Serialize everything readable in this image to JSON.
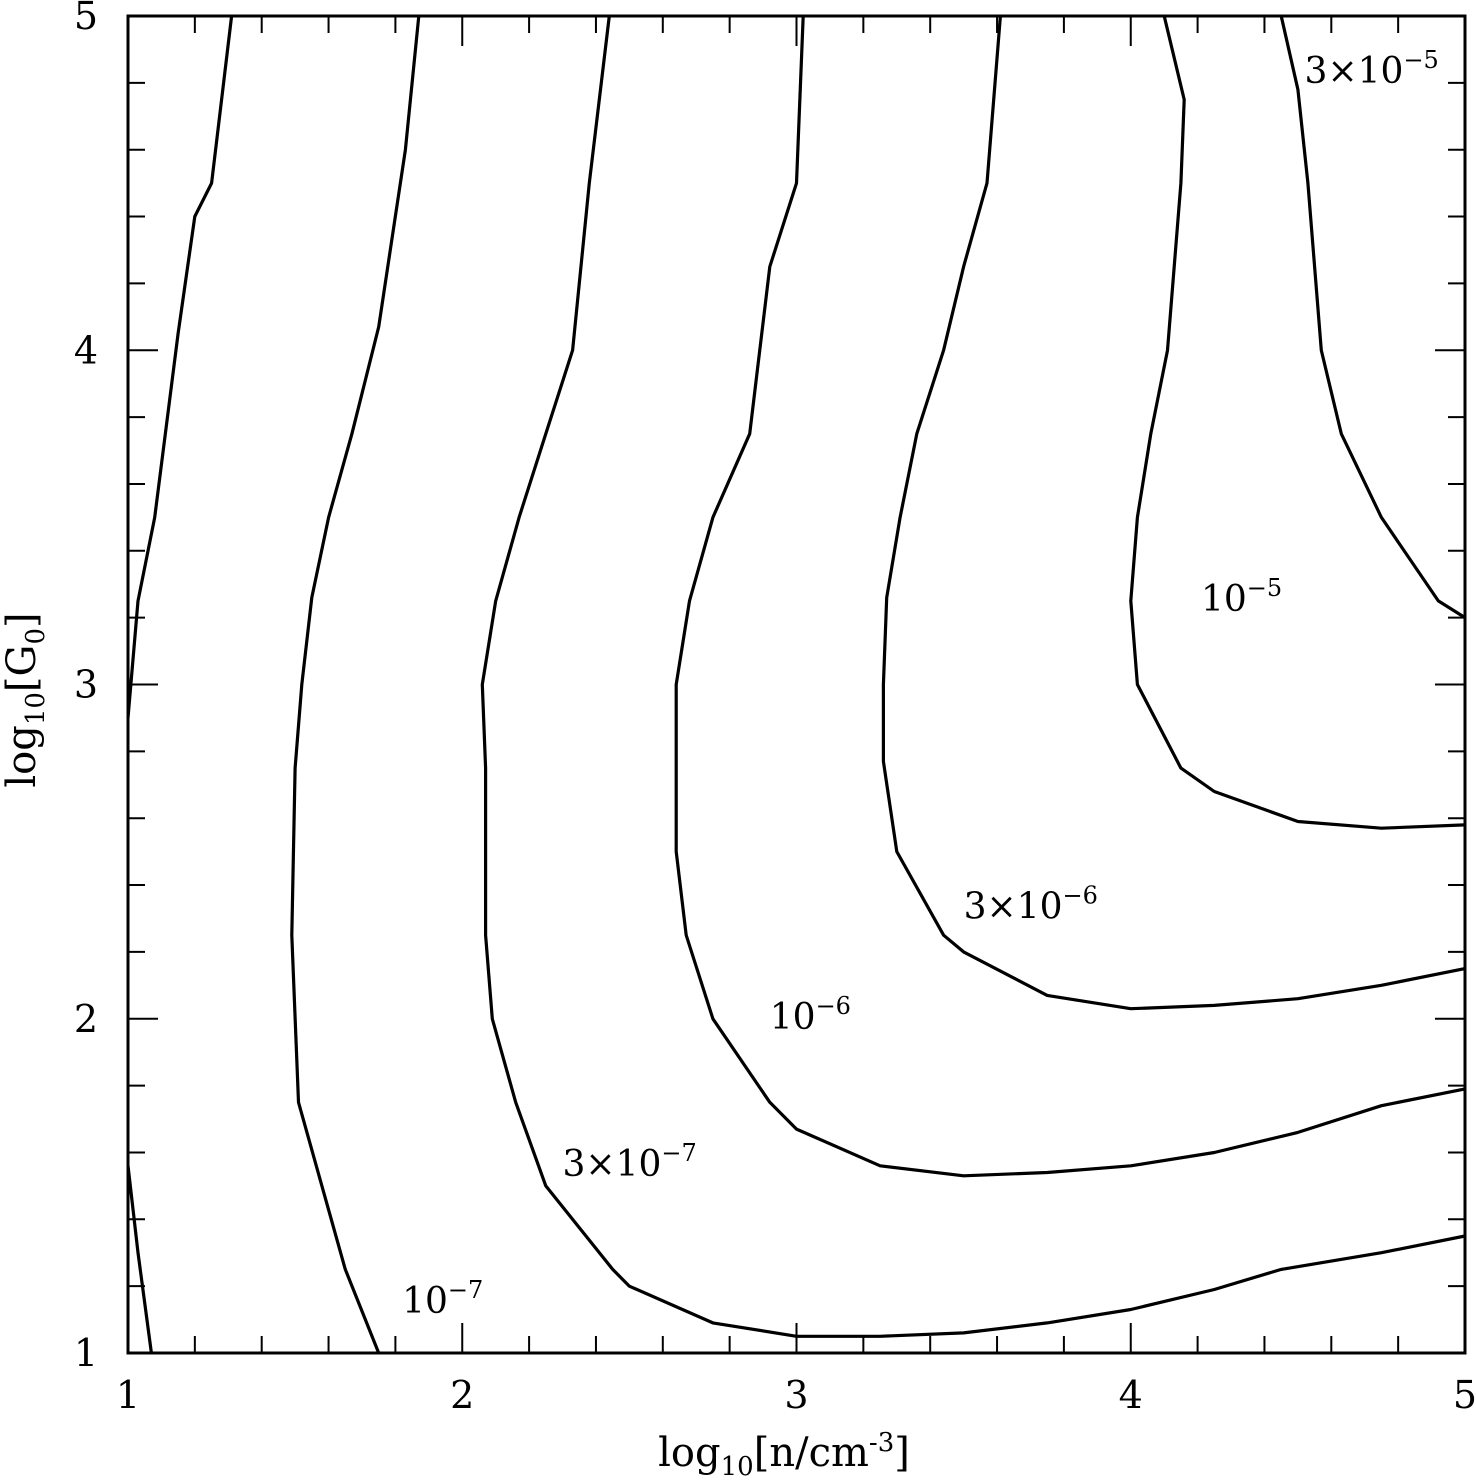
{
  "chart_data": {
    "type": "contour",
    "xlabel": {
      "base": "log",
      "sub": "10",
      "main": "[n/cm",
      "sup": "-3",
      "end": "]"
    },
    "ylabel": {
      "base": "log",
      "sub": "10",
      "main": "[G",
      "sub2": "0",
      "end": "]"
    },
    "xlim": [
      1,
      5
    ],
    "ylim": [
      1,
      5
    ],
    "x_ticks": [
      "1",
      "2",
      "3",
      "4",
      "5"
    ],
    "y_ticks": [
      "1",
      "2",
      "3",
      "4",
      "5"
    ],
    "grid": false,
    "contours": [
      {
        "label": {
          "pre": "",
          "main": "10",
          "sup": "−7"
        },
        "label_at": [
          1.82,
          1.12
        ],
        "lines": [
          [
            [
              1.0,
              1.56
            ],
            [
              1.03,
              1.3
            ],
            [
              1.07,
              1.0
            ]
          ],
          [
            [
              1.31,
              5.0
            ],
            [
              1.25,
              4.5
            ],
            [
              1.2,
              4.4
            ],
            [
              1.15,
              4.05
            ],
            [
              1.08,
              3.5
            ],
            [
              1.03,
              3.25
            ],
            [
              1.0,
              2.9
            ]
          ]
        ]
      },
      {
        "label": {
          "pre": "",
          "main": "10",
          "sup": "−7"
        },
        "label_at": null,
        "lines": [
          [
            [
              1.87,
              5.0
            ],
            [
              1.83,
              4.6
            ],
            [
              1.75,
              4.07
            ],
            [
              1.67,
              3.75
            ],
            [
              1.6,
              3.5
            ],
            [
              1.55,
              3.26
            ],
            [
              1.52,
              3.0
            ],
            [
              1.5,
              2.75
            ],
            [
              1.49,
              2.25
            ],
            [
              1.51,
              1.75
            ],
            [
              1.58,
              1.5
            ],
            [
              1.65,
              1.25
            ],
            [
              1.75,
              1.0
            ]
          ]
        ]
      },
      {
        "label": {
          "pre": "3×",
          "main": "10",
          "sup": "−7"
        },
        "label_at": [
          2.3,
          1.53
        ],
        "lines": [
          [
            [
              2.44,
              5.0
            ],
            [
              2.38,
              4.5
            ],
            [
              2.33,
              4.0
            ],
            [
              2.25,
              3.75
            ],
            [
              2.17,
              3.5
            ],
            [
              2.1,
              3.25
            ],
            [
              2.06,
              3.0
            ],
            [
              2.07,
              2.75
            ],
            [
              2.07,
              2.25
            ],
            [
              2.09,
              2.0
            ],
            [
              2.16,
              1.75
            ],
            [
              2.25,
              1.5
            ],
            [
              2.45,
              1.25
            ],
            [
              2.5,
              1.2
            ],
            [
              2.75,
              1.09
            ],
            [
              3.0,
              1.05
            ],
            [
              3.25,
              1.05
            ],
            [
              3.5,
              1.06
            ],
            [
              3.75,
              1.09
            ],
            [
              4.0,
              1.13
            ],
            [
              4.25,
              1.19
            ],
            [
              4.45,
              1.25
            ],
            [
              4.75,
              1.3
            ],
            [
              5.0,
              1.35
            ]
          ]
        ]
      },
      {
        "label": {
          "pre": "",
          "main": "10",
          "sup": "−6"
        },
        "label_at": [
          2.92,
          1.97
        ],
        "lines": [
          [
            [
              3.02,
              5.0
            ],
            [
              3.0,
              4.5
            ],
            [
              2.92,
              4.25
            ],
            [
              2.86,
              3.75
            ],
            [
              2.75,
              3.5
            ],
            [
              2.68,
              3.25
            ],
            [
              2.64,
              3.0
            ],
            [
              2.64,
              2.5
            ],
            [
              2.67,
              2.25
            ],
            [
              2.75,
              2.0
            ],
            [
              2.92,
              1.75
            ],
            [
              3.0,
              1.67
            ],
            [
              3.25,
              1.56
            ],
            [
              3.5,
              1.53
            ],
            [
              3.75,
              1.54
            ],
            [
              4.0,
              1.56
            ],
            [
              4.25,
              1.6
            ],
            [
              4.5,
              1.66
            ],
            [
              4.75,
              1.74
            ],
            [
              5.0,
              1.79
            ]
          ]
        ]
      },
      {
        "label": {
          "pre": "3×",
          "main": "10",
          "sup": "−6"
        },
        "label_at": [
          3.5,
          2.3
        ],
        "lines": [
          [
            [
              3.61,
              5.0
            ],
            [
              3.57,
              4.5
            ],
            [
              3.5,
              4.25
            ],
            [
              3.44,
              4.0
            ],
            [
              3.36,
              3.75
            ],
            [
              3.31,
              3.5
            ],
            [
              3.27,
              3.26
            ],
            [
              3.26,
              3.0
            ],
            [
              3.26,
              2.77
            ],
            [
              3.3,
              2.5
            ],
            [
              3.44,
              2.25
            ],
            [
              3.5,
              2.2
            ],
            [
              3.75,
              2.07
            ],
            [
              4.0,
              2.03
            ],
            [
              4.25,
              2.04
            ],
            [
              4.5,
              2.06
            ],
            [
              4.75,
              2.1
            ],
            [
              5.0,
              2.15
            ]
          ]
        ]
      },
      {
        "label": {
          "pre": "",
          "main": "10",
          "sup": "−5"
        },
        "label_at": [
          4.21,
          3.22
        ],
        "lines": [
          [
            [
              4.1,
              5.0
            ],
            [
              4.16,
              4.75
            ],
            [
              4.15,
              4.5
            ],
            [
              4.11,
              4.0
            ],
            [
              4.06,
              3.75
            ],
            [
              4.02,
              3.5
            ],
            [
              4.0,
              3.25
            ],
            [
              4.02,
              3.0
            ],
            [
              4.15,
              2.75
            ],
            [
              4.25,
              2.68
            ],
            [
              4.5,
              2.59
            ],
            [
              4.75,
              2.57
            ],
            [
              5.0,
              2.58
            ]
          ]
        ]
      },
      {
        "label": {
          "pre": "3×",
          "main": "10",
          "sup": "−5"
        },
        "label_at": [
          4.52,
          4.8
        ],
        "lines": [
          [
            [
              4.45,
              5.0
            ],
            [
              4.5,
              4.78
            ],
            [
              4.53,
              4.5
            ],
            [
              4.57,
              4.0
            ],
            [
              4.63,
              3.75
            ],
            [
              4.75,
              3.5
            ],
            [
              4.92,
              3.25
            ],
            [
              5.0,
              3.2
            ]
          ]
        ]
      }
    ]
  }
}
